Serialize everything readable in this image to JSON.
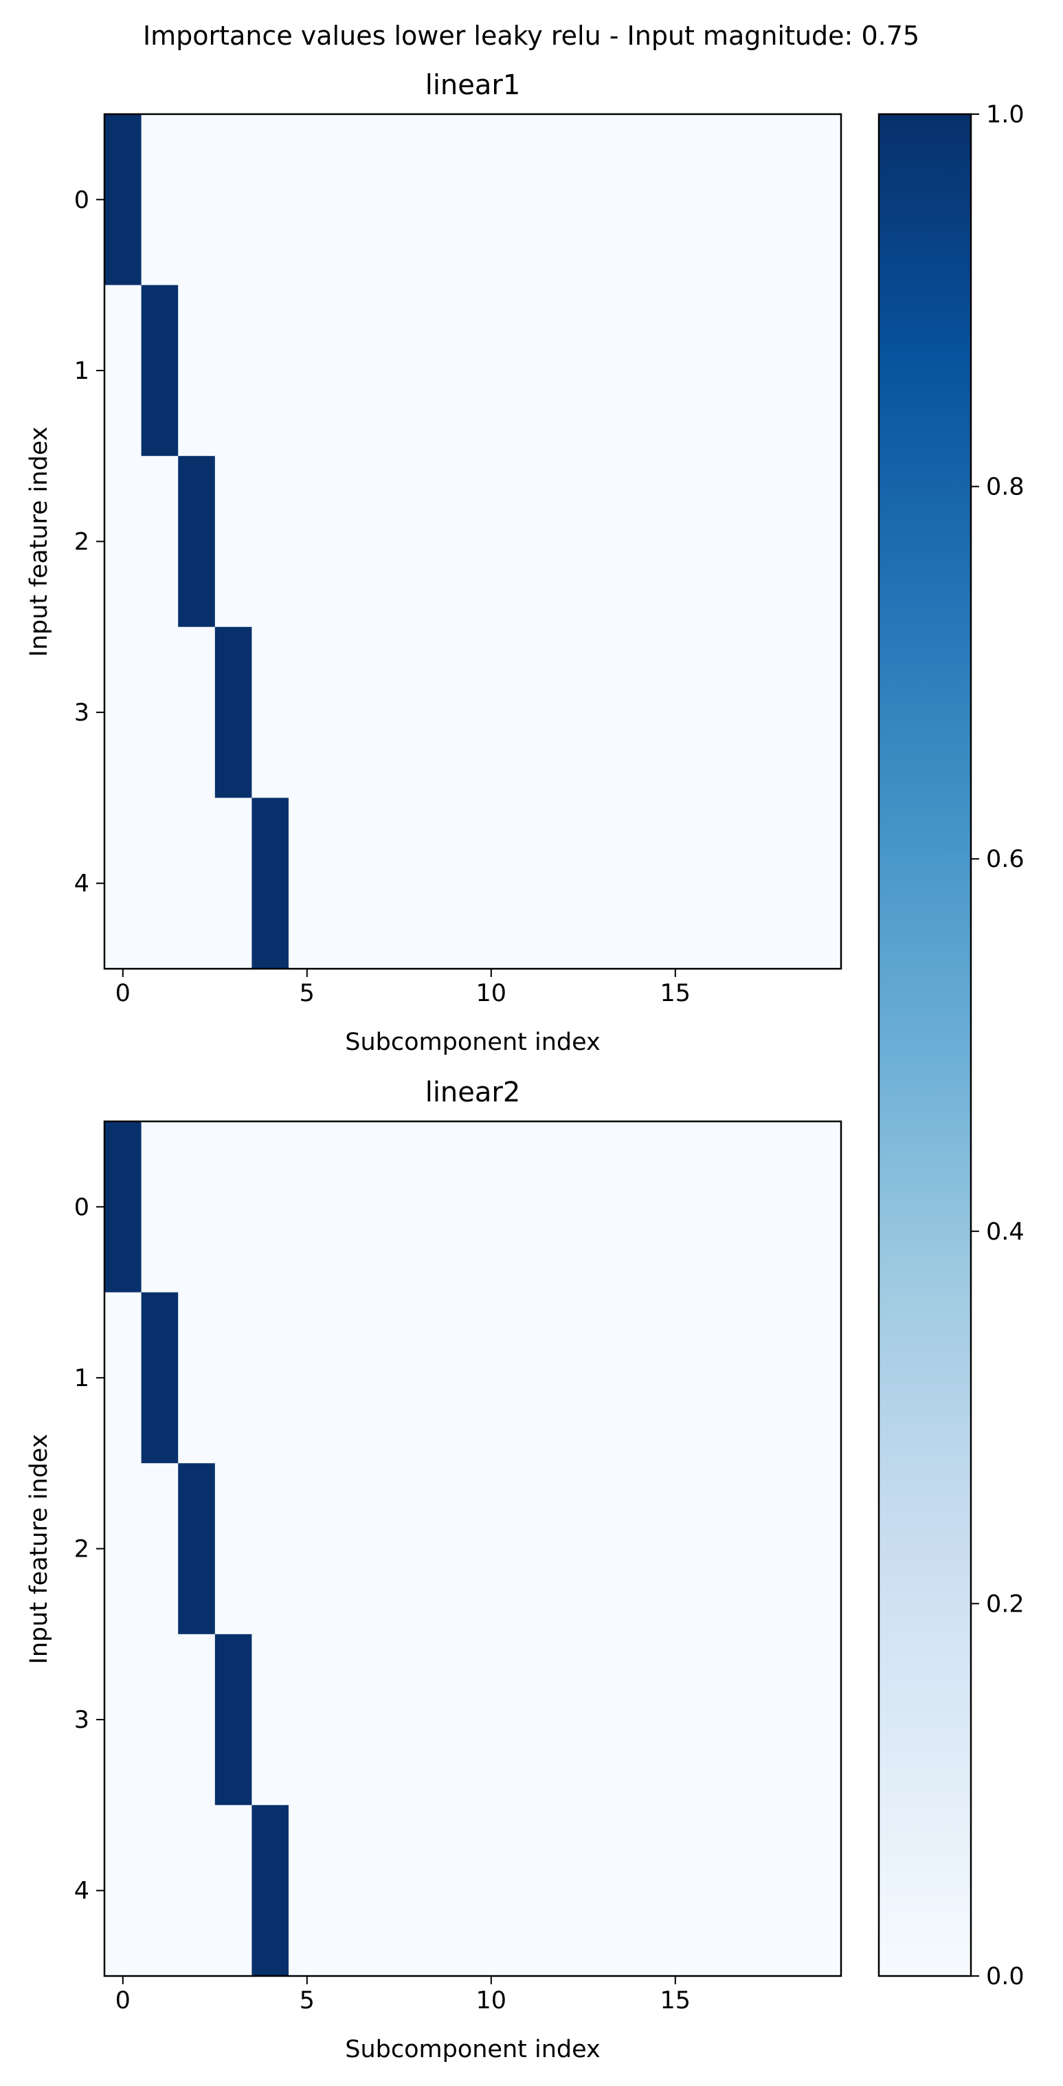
{
  "figure": {
    "title": "Importance values lower leaky relu - Input magnitude: 0.75"
  },
  "chart_data": [
    {
      "type": "heatmap",
      "title": "linear1",
      "xlabel": "Subcomponent index",
      "ylabel": "Input feature index",
      "n_rows": 5,
      "n_cols": 20,
      "x_ticks": [
        "0",
        "5",
        "10",
        "15"
      ],
      "y_ticks": [
        "0",
        "1",
        "2",
        "3",
        "4"
      ],
      "values": [
        [
          1,
          0,
          0,
          0,
          0,
          0,
          0,
          0,
          0,
          0,
          0,
          0,
          0,
          0,
          0,
          0,
          0,
          0,
          0,
          0
        ],
        [
          0,
          1,
          0,
          0,
          0,
          0,
          0,
          0,
          0,
          0,
          0,
          0,
          0,
          0,
          0,
          0,
          0,
          0,
          0,
          0
        ],
        [
          0,
          0,
          1,
          0,
          0,
          0,
          0,
          0,
          0,
          0,
          0,
          0,
          0,
          0,
          0,
          0,
          0,
          0,
          0,
          0
        ],
        [
          0,
          0,
          0,
          1,
          0,
          0,
          0,
          0,
          0,
          0,
          0,
          0,
          0,
          0,
          0,
          0,
          0,
          0,
          0,
          0
        ],
        [
          0,
          0,
          0,
          0,
          1,
          0,
          0,
          0,
          0,
          0,
          0,
          0,
          0,
          0,
          0,
          0,
          0,
          0,
          0,
          0
        ]
      ],
      "colormap": "Blues",
      "vmin": 0,
      "vmax": 1
    },
    {
      "type": "heatmap",
      "title": "linear2",
      "xlabel": "Subcomponent index",
      "ylabel": "Input feature index",
      "n_rows": 5,
      "n_cols": 20,
      "x_ticks": [
        "0",
        "5",
        "10",
        "15"
      ],
      "y_ticks": [
        "0",
        "1",
        "2",
        "3",
        "4"
      ],
      "values": [
        [
          1,
          0,
          0,
          0,
          0,
          0,
          0,
          0,
          0,
          0,
          0,
          0,
          0,
          0,
          0,
          0,
          0,
          0,
          0,
          0
        ],
        [
          0,
          1,
          0,
          0,
          0,
          0,
          0,
          0,
          0,
          0,
          0,
          0,
          0,
          0,
          0,
          0,
          0,
          0,
          0,
          0
        ],
        [
          0,
          0,
          1,
          0,
          0,
          0,
          0,
          0,
          0,
          0,
          0,
          0,
          0,
          0,
          0,
          0,
          0,
          0,
          0,
          0
        ],
        [
          0,
          0,
          0,
          1,
          0,
          0,
          0,
          0,
          0,
          0,
          0,
          0,
          0,
          0,
          0,
          0,
          0,
          0,
          0,
          0
        ],
        [
          0,
          0,
          0,
          0,
          1,
          0,
          0,
          0,
          0,
          0,
          0,
          0,
          0,
          0,
          0,
          0,
          0,
          0,
          0,
          0
        ]
      ],
      "colormap": "Blues",
      "vmin": 0,
      "vmax": 1
    }
  ],
  "colorbar": {
    "ticks": [
      "0.0",
      "0.2",
      "0.4",
      "0.6",
      "0.8",
      "1.0"
    ],
    "range": [
      0,
      1
    ],
    "colors": [
      "#f7fbff",
      "#deebf7",
      "#c6dbef",
      "#9ecae1",
      "#6baed6",
      "#4292c6",
      "#2171b5",
      "#08519c",
      "#08306b"
    ]
  }
}
